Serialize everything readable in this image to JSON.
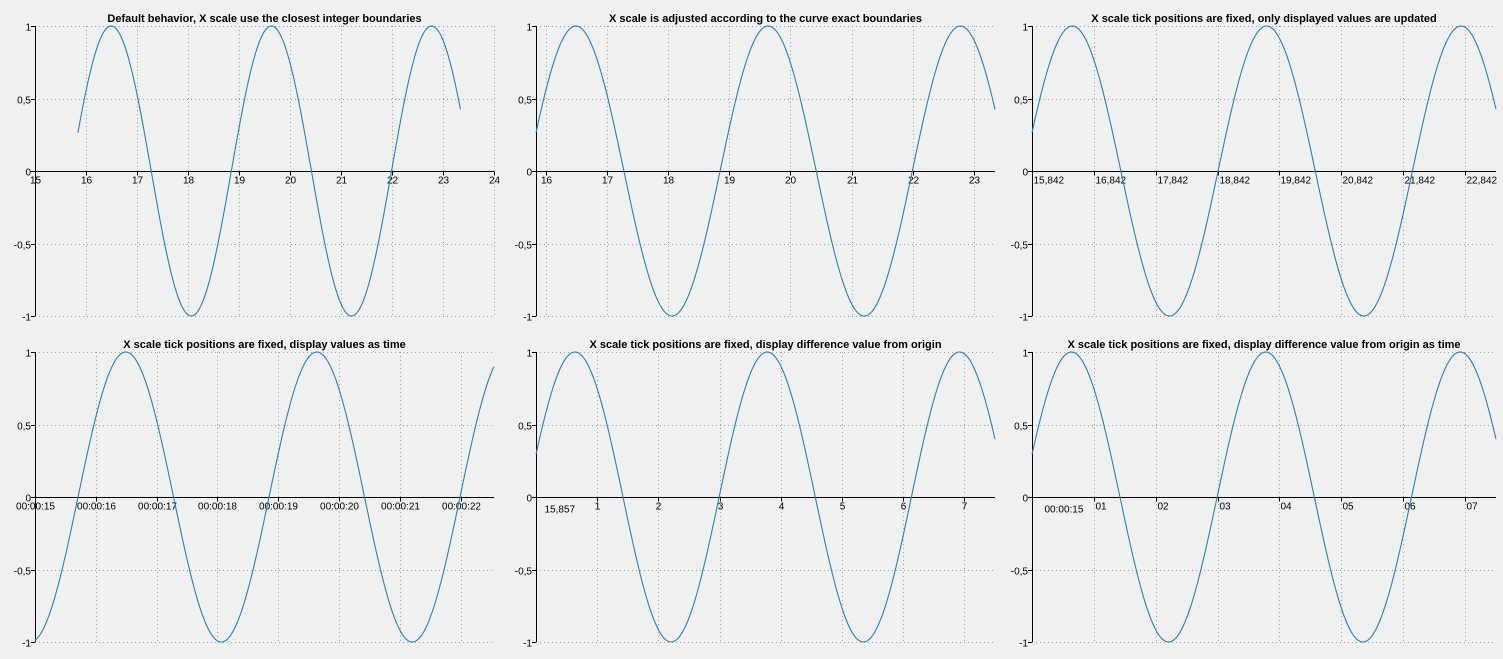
{
  "colors": {
    "curve": "#2a7fb8",
    "axis": "#000000",
    "grid": "#a0a0a0",
    "background": "#f0f0f0"
  },
  "chart_data": [
    {
      "type": "line",
      "title": "Default behavior, X scale use the closest integer boundaries",
      "x_ticks": [
        "15",
        "16",
        "17",
        "18",
        "19",
        "20",
        "21",
        "22",
        "23",
        "24"
      ],
      "y_ticks": [
        "1",
        "0,5",
        "0",
        "-0,5",
        "-1"
      ],
      "xlim": [
        15,
        24
      ],
      "ylim": [
        -1,
        1
      ],
      "grid": true,
      "series": [
        {
          "function": "sin(2x)",
          "x_range": [
            15.842,
            23.342
          ]
        }
      ]
    },
    {
      "type": "line",
      "title": "X scale is adjusted according to the curve exact boundaries",
      "x_ticks": [
        "16",
        "17",
        "18",
        "19",
        "20",
        "21",
        "22",
        "23"
      ],
      "y_ticks": [
        "1",
        "0,5",
        "0",
        "-0,5",
        "-1"
      ],
      "xlim": [
        15.842,
        23.342
      ],
      "ylim": [
        -1,
        1
      ],
      "grid": true,
      "series": [
        {
          "function": "sin(2x)",
          "x_range": [
            15.842,
            23.342
          ]
        }
      ]
    },
    {
      "type": "line",
      "title": "X scale tick positions are fixed, only displayed values are updated",
      "x_ticks": [
        "15,842",
        "16,842",
        "17,842",
        "18,842",
        "19,842",
        "20,842",
        "21,842",
        "22,842"
      ],
      "y_ticks": [
        "1",
        "0,5",
        "0",
        "-0,5",
        "-1"
      ],
      "xlim": [
        15.842,
        23.342
      ],
      "ylim": [
        -1,
        1
      ],
      "grid": true,
      "series": [
        {
          "function": "sin(2x)",
          "x_range": [
            15.842,
            23.342
          ]
        }
      ]
    },
    {
      "type": "line",
      "title": "X scale tick positions are fixed, display values as time",
      "x_ticks": [
        "00:00:15",
        "00:00:16",
        "00:00:17",
        "00:00:18",
        "00:00:19",
        "00:00:20",
        "00:00:21",
        "00:00:22"
      ],
      "y_ticks": [
        "1",
        "0,5",
        "0",
        "-0,5",
        "-1"
      ],
      "xlim": [
        15,
        22.55
      ],
      "ylim": [
        -1,
        1
      ],
      "grid": true,
      "series": [
        {
          "function": "sin(2x)",
          "x_range": [
            15,
            22.55
          ]
        }
      ]
    },
    {
      "type": "line",
      "title": "X scale tick positions are fixed, display difference value from origin",
      "x_ticks": [
        "15,857",
        "1",
        "2",
        "3",
        "4",
        "5",
        "6",
        "7"
      ],
      "y_ticks": [
        "1",
        "0,5",
        "0",
        "-0,5",
        "-1"
      ],
      "xlim": [
        0,
        7.5
      ],
      "ylim": [
        -1,
        1
      ],
      "grid": true,
      "series": [
        {
          "function": "sin(2(x+15.857))",
          "x_range": [
            0,
            7.5
          ]
        }
      ]
    },
    {
      "type": "line",
      "title": "X scale tick positions are fixed, display difference value from origin as time",
      "x_ticks": [
        "00:00:15",
        "01",
        "02",
        "03",
        "04",
        "05",
        "06",
        "07"
      ],
      "y_ticks": [
        "1",
        "0,5",
        "0",
        "-0,5",
        "-1"
      ],
      "xlim": [
        0,
        7.5
      ],
      "ylim": [
        -1,
        1
      ],
      "grid": true,
      "series": [
        {
          "function": "sin(2(x+15.857))",
          "x_range": [
            0,
            7.5
          ]
        }
      ]
    }
  ]
}
